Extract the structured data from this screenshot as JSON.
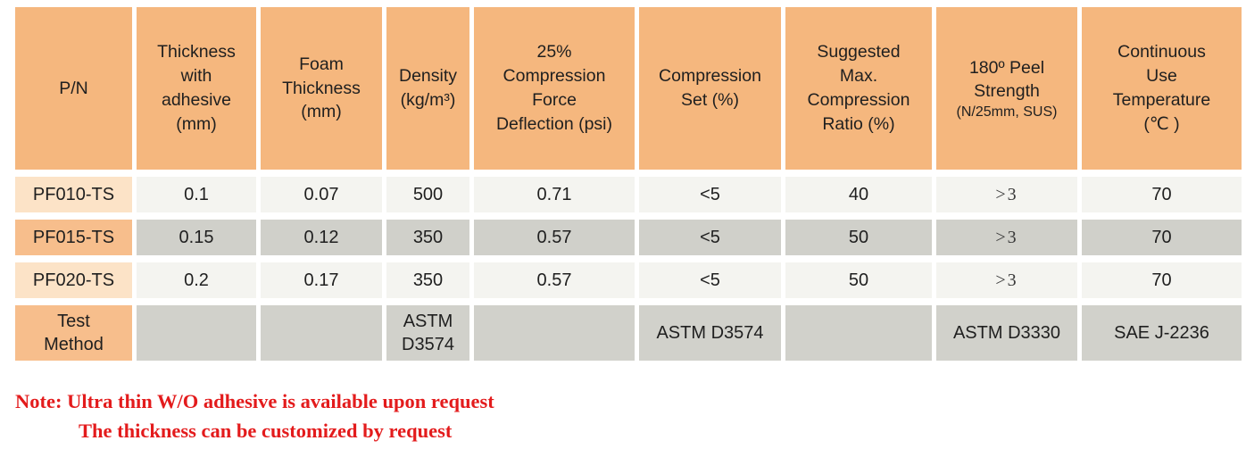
{
  "colors": {
    "header-orange": "#F5B77E",
    "pn-light": "#FCE3C7",
    "pn-dark": "#F7BE8C",
    "row-light": "#F4F4F0",
    "row-dark": "#D0D0CA",
    "test-gray": "#D1D1CB",
    "note-red": "#E31B1C"
  },
  "table": {
    "headers": [
      {
        "label": "P/N"
      },
      {
        "label": "Thickness\nwith\nadhesive\n(mm)"
      },
      {
        "label": "Foam\nThickness\n(mm)"
      },
      {
        "label": "Density\n(kg/m³)"
      },
      {
        "label": "25%\nCompression\nForce\nDeflection (psi)"
      },
      {
        "label": "Compression\nSet (%)"
      },
      {
        "label": "Suggested\nMax.\nCompression\nRatio (%)"
      },
      {
        "label": "180º Peel\nStrength",
        "sub": "(N/25mm, SUS)"
      },
      {
        "label": "Continuous\nUse\nTemperature\n(℃ )"
      }
    ],
    "rows": [
      {
        "pn": "PF010-TS",
        "values": [
          "0.1",
          "0.07",
          "500",
          "0.71",
          "<5",
          "40",
          ">3",
          "70"
        ]
      },
      {
        "pn": "PF015-TS",
        "values": [
          "0.15",
          "0.12",
          "350",
          "0.57",
          "<5",
          "50",
          ">3",
          "70"
        ]
      },
      {
        "pn": "PF020-TS",
        "values": [
          "0.2",
          "0.17",
          "350",
          "0.57",
          "<5",
          "50",
          ">3",
          "70"
        ]
      }
    ],
    "test_method_row": {
      "label": "Test\nMethod",
      "values": [
        "",
        "",
        "ASTM\nD3574",
        "",
        "ASTM D3574",
        "",
        "ASTM D3330",
        "SAE J-2236"
      ]
    }
  },
  "note": {
    "line1": "Note: Ultra thin W/O adhesive is available upon request",
    "line2": "The thickness can be customized by request"
  }
}
